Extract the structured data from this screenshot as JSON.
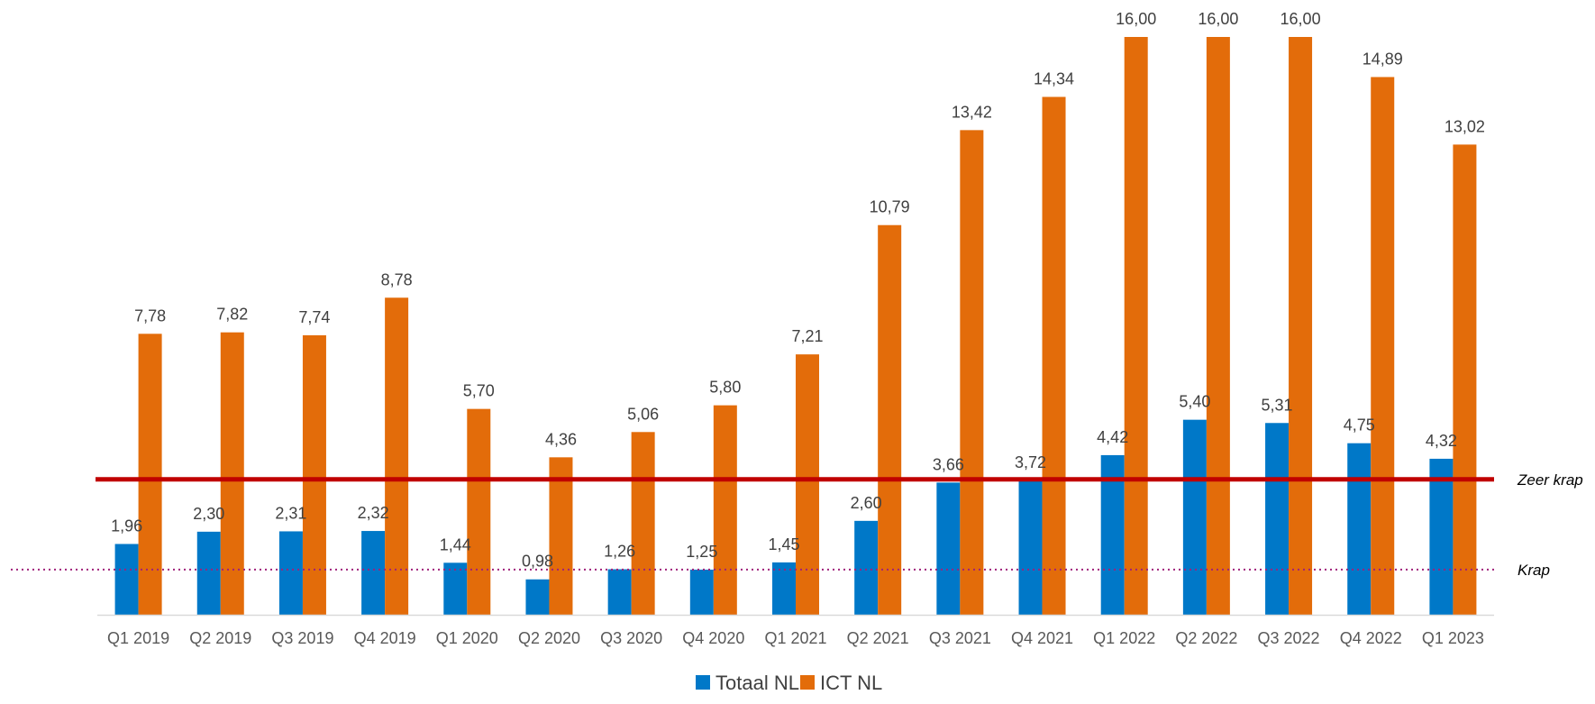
{
  "colors": {
    "totaal": "#0078C8",
    "ict": "#E36C0A",
    "zeer_krap_line": "#C00000",
    "krap_line": "#A0207A",
    "axis": "#D9D9D9"
  },
  "chart_data": {
    "type": "bar",
    "categories": [
      "Q1 2019",
      "Q2 2019",
      "Q3 2019",
      "Q4 2019",
      "Q1 2020",
      "Q2 2020",
      "Q3 2020",
      "Q4 2020",
      "Q1 2021",
      "Q2 2021",
      "Q3 2021",
      "Q4 2021",
      "Q1 2022",
      "Q2 2022",
      "Q3 2022",
      "Q4 2022",
      "Q1 2023"
    ],
    "series": [
      {
        "name": "Totaal NL",
        "values": [
          1.96,
          2.3,
          2.31,
          2.32,
          1.44,
          0.98,
          1.26,
          1.25,
          1.45,
          2.6,
          3.66,
          3.72,
          4.42,
          5.4,
          5.31,
          4.75,
          4.32
        ],
        "labels": [
          "1,96",
          "2,30",
          "2,31",
          "2,32",
          "1,44",
          "0,98",
          "1,26",
          "1,25",
          "1,45",
          "2,60",
          "3,66",
          "3,72",
          "4,42",
          "5,40",
          "5,31",
          "4,75",
          "4,32"
        ]
      },
      {
        "name": "ICT NL",
        "values": [
          7.78,
          7.82,
          7.74,
          8.78,
          5.7,
          4.36,
          5.06,
          5.8,
          7.21,
          10.79,
          13.42,
          14.34,
          16.0,
          16.0,
          16.0,
          14.89,
          13.02
        ],
        "labels": [
          "7,78",
          "7,82",
          "7,74",
          "8,78",
          "5,70",
          "4,36",
          "5,06",
          "5,80",
          "7,21",
          "10,79",
          "13,42",
          "14,34",
          "16,00",
          "16,00",
          "16,00",
          "14,89",
          "13,02"
        ]
      }
    ],
    "reference_lines": [
      {
        "label": "Zeer krap",
        "value": 3.75,
        "style": "solid"
      },
      {
        "label": "Krap",
        "value": 1.25,
        "style": "dotted"
      }
    ],
    "ylim": [
      0,
      16
    ],
    "legend_placement": "bottom-center",
    "grid": false
  }
}
